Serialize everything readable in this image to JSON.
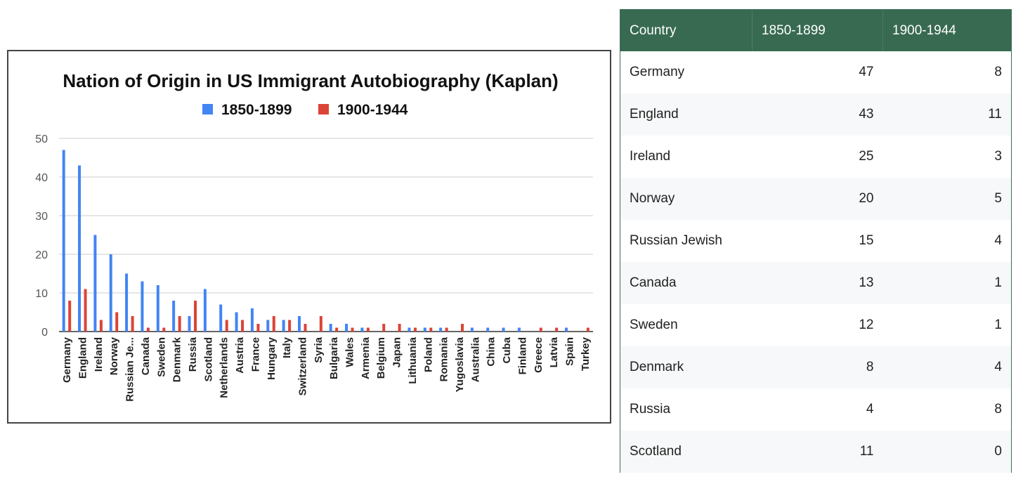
{
  "chart_data": {
    "type": "bar",
    "title": "Nation of Origin in US Immigrant Autobiography (Kaplan)",
    "xlabel": "",
    "ylabel": "",
    "ylim": [
      0,
      50
    ],
    "yticks": [
      0,
      10,
      20,
      30,
      40,
      50
    ],
    "grid": true,
    "legend_position": "top",
    "categories": [
      "Germany",
      "England",
      "Ireland",
      "Norway",
      "Russian Je...",
      "Canada",
      "Sweden",
      "Denmark",
      "Russia",
      "Scotland",
      "Netherlands",
      "Austria",
      "France",
      "Hungary",
      "Italy",
      "Switzerland",
      "Syria",
      "Bulgaria",
      "Wales",
      "Armenia",
      "Belgium",
      "Japan",
      "Lithuania",
      "Poland",
      "Romania",
      "Yugoslavia",
      "Australia",
      "China",
      "Cuba",
      "Finland",
      "Greece",
      "Latvia",
      "Spain",
      "Turkey"
    ],
    "series": [
      {
        "name": "1850-1899",
        "color": "#4285f4",
        "values": [
          47,
          43,
          25,
          20,
          15,
          13,
          12,
          8,
          4,
          11,
          7,
          5,
          6,
          3,
          3,
          4,
          0,
          2,
          2,
          1,
          0,
          0,
          1,
          1,
          1,
          0,
          1,
          1,
          1,
          1,
          0,
          0,
          1,
          0
        ]
      },
      {
        "name": "1900-1944",
        "color": "#db4437",
        "values": [
          8,
          11,
          3,
          5,
          4,
          1,
          1,
          4,
          8,
          0,
          3,
          3,
          2,
          4,
          3,
          2,
          4,
          1,
          1,
          1,
          2,
          2,
          1,
          1,
          1,
          2,
          0,
          0,
          0,
          0,
          1,
          1,
          0,
          1
        ]
      }
    ]
  },
  "table": {
    "headers": [
      "Country",
      "1850-1899",
      "1900-1944"
    ],
    "rows": [
      [
        "Germany",
        "47",
        "8"
      ],
      [
        "England",
        "43",
        "11"
      ],
      [
        "Ireland",
        "25",
        "3"
      ],
      [
        "Norway",
        "20",
        "5"
      ],
      [
        "Russian Jewish",
        "15",
        "4"
      ],
      [
        "Canada",
        "13",
        "1"
      ],
      [
        "Sweden",
        "12",
        "1"
      ],
      [
        "Denmark",
        "8",
        "4"
      ],
      [
        "Russia",
        "4",
        "8"
      ],
      [
        "Scotland",
        "11",
        "0"
      ]
    ]
  }
}
